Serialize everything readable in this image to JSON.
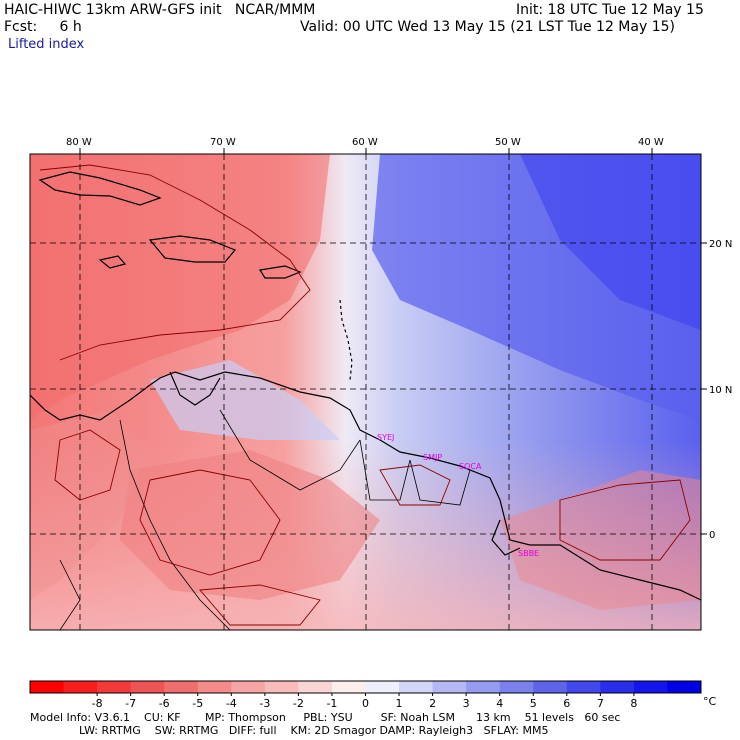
{
  "header": {
    "model_line": "HAIC-HIWC 13km ARW-GFS init   NCAR/MMM",
    "init_line": "Init: 18 UTC Tue 12 May 15",
    "fcst_line": "Fcst:     6 h",
    "valid_line": "Valid: 00 UTC Wed 13 May 15 (21 LST Tue 12 May 15)",
    "field_name": "Lifted index"
  },
  "map": {
    "lon_labels": [
      "80 W",
      "70 W",
      "60 W",
      "50 W",
      "40 W"
    ],
    "lat_labels": [
      "20 N",
      "10 N",
      "0"
    ],
    "station_labels": [
      "SYEJ",
      "SMJP",
      "SOCA",
      "SBBE"
    ],
    "colors": {
      "unstable_strong": "#f26b6b",
      "unstable_weak": "#f8b4b4",
      "neutral": "#f5f0f8",
      "stable_weak": "#bcc4f2",
      "stable_strong": "#3a3ef0",
      "coast": "#000000",
      "contour": "#8b0000",
      "grid": "#000000"
    }
  },
  "legend": {
    "tick_labels": [
      "-8",
      "-7",
      "-6",
      "-5",
      "-4",
      "-3",
      "-2",
      "-1",
      "0",
      "1",
      "2",
      "3",
      "4",
      "5",
      "6",
      "7",
      "8"
    ],
    "unit": "°C",
    "colors": [
      "#ff0000",
      "#f81e1e",
      "#f23a3a",
      "#ee5454",
      "#f06e6e",
      "#f48a8a",
      "#f7a4a4",
      "#f9bcbc",
      "#fbd5d5",
      "#fdeeee",
      "#eeeefd",
      "#d2d4f8",
      "#b4b8f4",
      "#969cf0",
      "#7a80ec",
      "#5e64ea",
      "#4248ec",
      "#2a2eec",
      "#1414ec",
      "#0000e6"
    ]
  },
  "footer": {
    "line1": "Model Info: V3.6.1    CU: KF       MP: Thompson     PBL: YSU        SF: Noah LSM      13 km    51 levels   60 sec",
    "line2": "              LW: RRTMG    SW: RRTMG   DIFF: full    KM: 2D Smagor DAMP: Rayleigh3   SFLAY: MM5"
  }
}
